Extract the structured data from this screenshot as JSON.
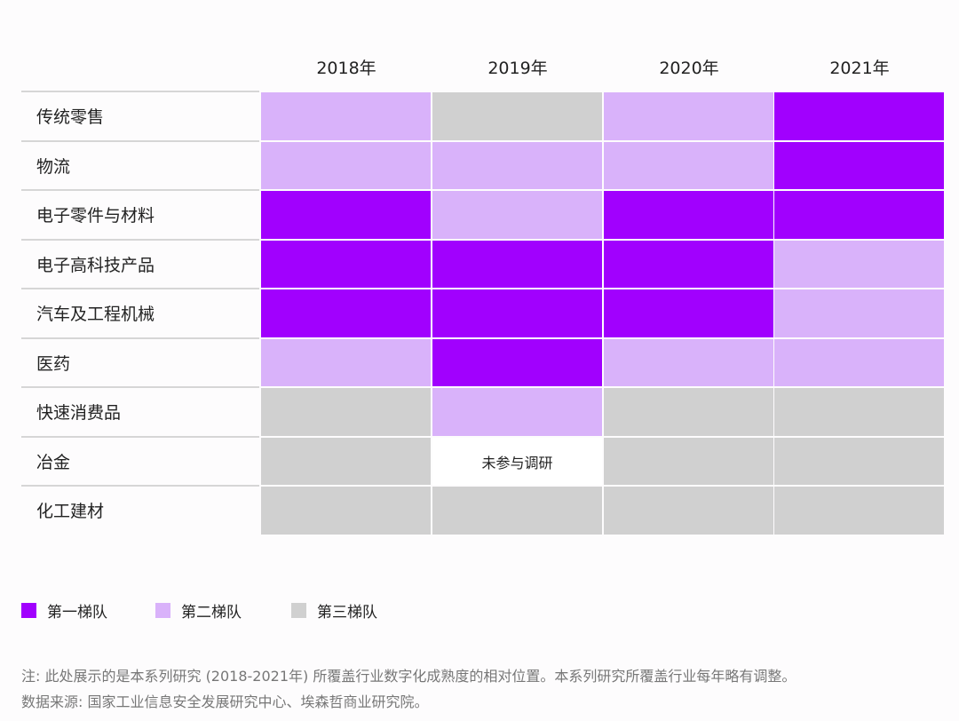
{
  "chart_data": {
    "type": "heatmap",
    "columns": [
      "2018年",
      "2019年",
      "2020年",
      "2021年"
    ],
    "rows": [
      "传统零售",
      "物流",
      "电子零件与材料",
      "电子高科技产品",
      "汽车及工程机械",
      "医药",
      "快速消费品",
      "冶金",
      "化工建材"
    ],
    "values": [
      [
        2,
        3,
        2,
        1
      ],
      [
        2,
        2,
        2,
        1
      ],
      [
        1,
        2,
        1,
        1
      ],
      [
        1,
        1,
        1,
        2
      ],
      [
        1,
        1,
        1,
        2
      ],
      [
        2,
        1,
        2,
        2
      ],
      [
        3,
        2,
        3,
        3
      ],
      [
        3,
        null,
        3,
        3
      ],
      [
        3,
        3,
        3,
        3
      ]
    ],
    "missing_label": "未参与调研",
    "legend": [
      {
        "tier": 1,
        "label": "第一梯队",
        "color": "#a100fe"
      },
      {
        "tier": 2,
        "label": "第二梯队",
        "color": "#d9b2fa"
      },
      {
        "tier": 3,
        "label": "第三梯队",
        "color": "#d0d0d0"
      }
    ],
    "legend_position": "bottom-left"
  },
  "notes": {
    "note": "注: 此处展示的是本系列研究 (2018-2021年) 所覆盖行业数字化成熟度的相对位置。本系列研究所覆盖行业每年略有调整。",
    "source": "数据来源: 国家工业信息安全发展研究中心、埃森哲商业研究院。"
  }
}
